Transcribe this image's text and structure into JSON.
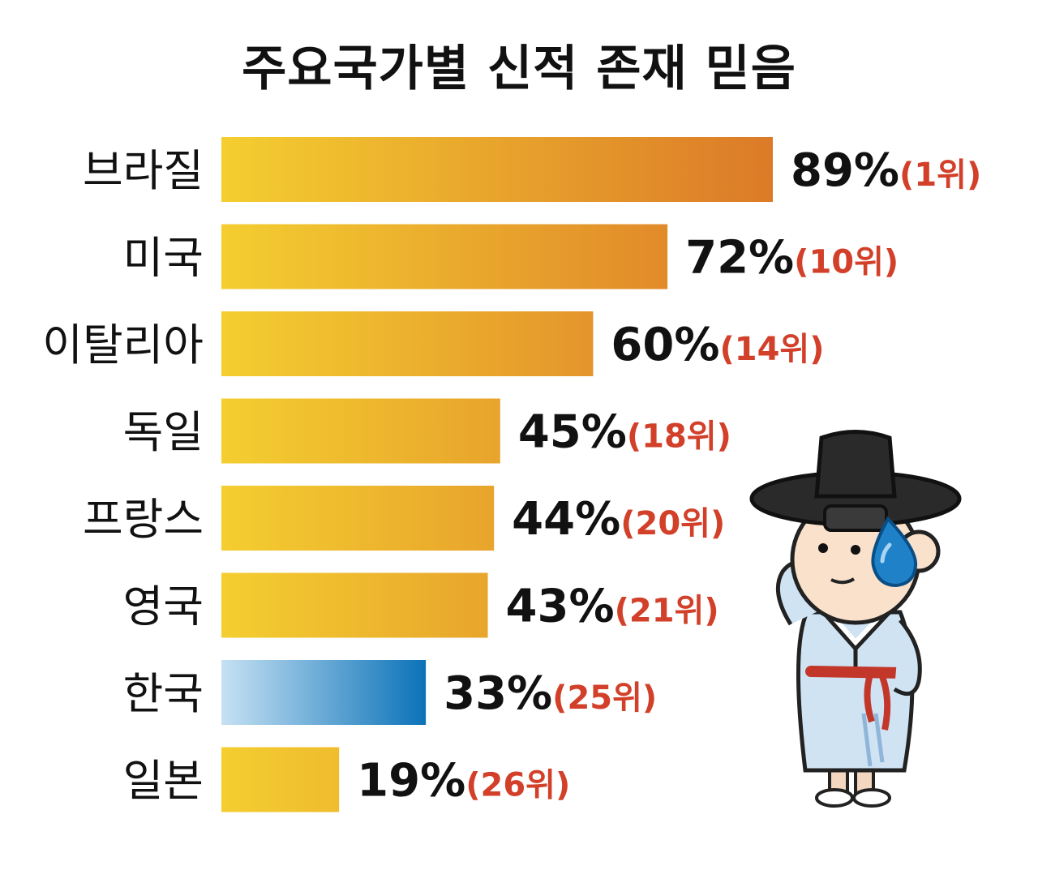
{
  "chart_data": {
    "type": "bar",
    "orientation": "horizontal",
    "title": "주요국가별 신적 존재 믿음",
    "categories": [
      "브라질",
      "미국",
      "이탈리아",
      "독일",
      "프랑스",
      "영국",
      "한국",
      "일본"
    ],
    "values": [
      89,
      72,
      60,
      45,
      44,
      43,
      33,
      19
    ],
    "value_labels": [
      "89%",
      "72%",
      "60%",
      "45%",
      "44%",
      "43%",
      "33%",
      "19%"
    ],
    "rank_labels": [
      "(1위)",
      "(10위)",
      "(14위)",
      "(18위)",
      "(20위)",
      "(21위)",
      "(25위)",
      "(26위)"
    ],
    "highlight_category": "한국",
    "xlim": [
      0,
      89
    ],
    "grid": false,
    "legend": "none"
  },
  "colors": {
    "bar_start": "#F4CE30",
    "bar_end": "#DC7A28",
    "highlight_start": "#C6E1F3",
    "highlight_end": "#0B72B8",
    "value_text": "#111111",
    "rank_text": "#D2402A"
  },
  "illustration": {
    "icon": "seonbi-character-sweat-drop-icon"
  }
}
